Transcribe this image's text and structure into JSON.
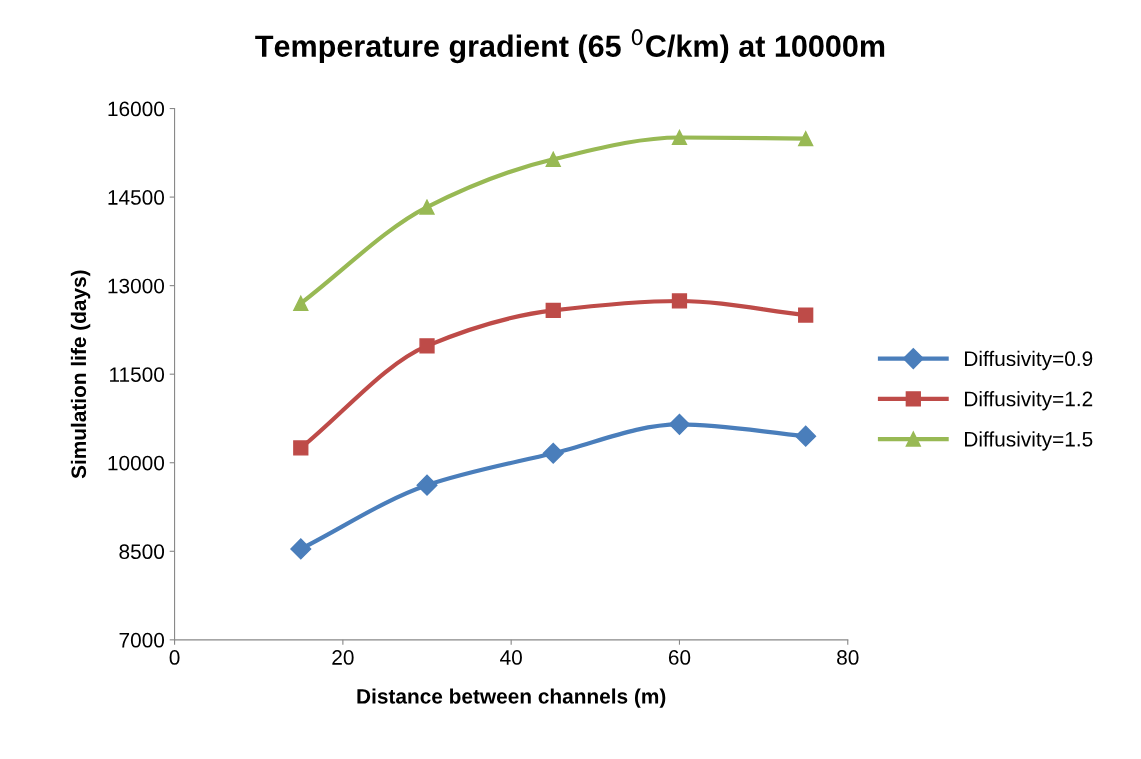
{
  "chart_data": {
    "type": "line",
    "title": "Temperature gradient (65 $^{0}$C/km) at 10000m",
    "xlabel": "Distance between channels (m)",
    "ylabel": "Simulation life (days)",
    "x": [
      15,
      30,
      45,
      60,
      75
    ],
    "series": [
      {
        "name": "Diffusivity=0.9",
        "color": "#4a7ebb",
        "marker": "diamond",
        "values": [
          8540,
          9620,
          10160,
          10650,
          10450
        ]
      },
      {
        "name": "Diffusivity=1.2",
        "color": "#be4b48",
        "marker": "square",
        "values": [
          10250,
          11980,
          12580,
          12740,
          12500
        ]
      },
      {
        "name": "Diffusivity=1.5",
        "color": "#98b954",
        "marker": "triangle",
        "values": [
          12700,
          14330,
          15140,
          15510,
          15490
        ]
      }
    ],
    "xlim": [
      0,
      80
    ],
    "xticks": [
      0,
      20,
      40,
      60,
      80
    ],
    "ylim": [
      7000,
      16000
    ],
    "yticks": [
      7000,
      8500,
      10000,
      11500,
      13000,
      14500,
      16000
    ],
    "grid": false,
    "legend": "right",
    "line_style": "solid"
  }
}
